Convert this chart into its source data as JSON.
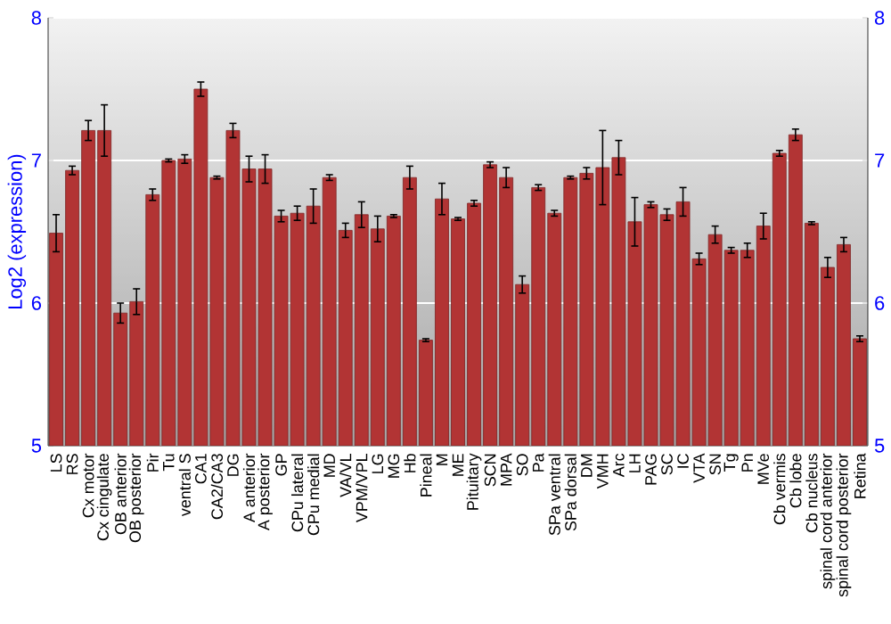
{
  "chart_data": {
    "type": "bar",
    "ylabel": "Log2 (expression)",
    "categories": [
      "LS",
      "RS",
      "Cx motor",
      "Cx cingulate",
      "OB anterior",
      "OB posterior",
      "Pir",
      "Tu",
      "ventral S",
      "CA1",
      "CA2/CA3",
      "DG",
      "A anterior",
      "A posterior",
      "GP",
      "CPu lateral",
      "CPu medial",
      "MD",
      "VA/VL",
      "VPM/VPL",
      "LG",
      "MG",
      "Hb",
      "Pineal",
      "M",
      "ME",
      "Pituitary",
      "SCN",
      "MPA",
      "SO",
      "Pa",
      "SPa ventral",
      "SPa dorsal",
      "DM",
      "VMH",
      "Arc",
      "LH",
      "PAG",
      "SC",
      "IC",
      "VTA",
      "SN",
      "Tg",
      "Pn",
      "MVe",
      "Cb vermis",
      "Cb lobe",
      "Cb nucleus",
      "spinal cord anterior",
      "spinal cord posterior",
      "Retina"
    ],
    "values": [
      6.49,
      6.93,
      7.21,
      7.21,
      5.93,
      6.01,
      6.76,
      7.0,
      7.01,
      7.5,
      6.88,
      7.21,
      6.94,
      6.94,
      6.61,
      6.63,
      6.68,
      6.88,
      6.51,
      6.62,
      6.52,
      6.61,
      6.88,
      5.74,
      6.73,
      6.59,
      6.7,
      6.97,
      6.88,
      6.13,
      6.81,
      6.63,
      6.88,
      6.91,
      6.95,
      7.02,
      6.57,
      6.69,
      6.62,
      6.71,
      6.31,
      6.48,
      6.37,
      6.37,
      6.54,
      7.05,
      7.18,
      6.56,
      6.25,
      6.41,
      5.75
    ],
    "errors": [
      0.13,
      0.03,
      0.07,
      0.18,
      0.07,
      0.09,
      0.04,
      0.01,
      0.03,
      0.05,
      0.01,
      0.05,
      0.09,
      0.1,
      0.04,
      0.05,
      0.12,
      0.02,
      0.05,
      0.09,
      0.09,
      0.01,
      0.08,
      0.01,
      0.11,
      0.01,
      0.02,
      0.02,
      0.07,
      0.06,
      0.02,
      0.02,
      0.01,
      0.04,
      0.26,
      0.12,
      0.17,
      0.02,
      0.04,
      0.1,
      0.04,
      0.06,
      0.02,
      0.05,
      0.09,
      0.02,
      0.04,
      0.01,
      0.07,
      0.05,
      0.02
    ],
    "color": "#b23434",
    "ylim": [
      5,
      8
    ],
    "yticks": [
      5,
      6,
      7,
      8
    ],
    "y2lim": [
      5,
      8
    ],
    "y2ticks": [
      5,
      6,
      7,
      8
    ],
    "grid": "y"
  }
}
